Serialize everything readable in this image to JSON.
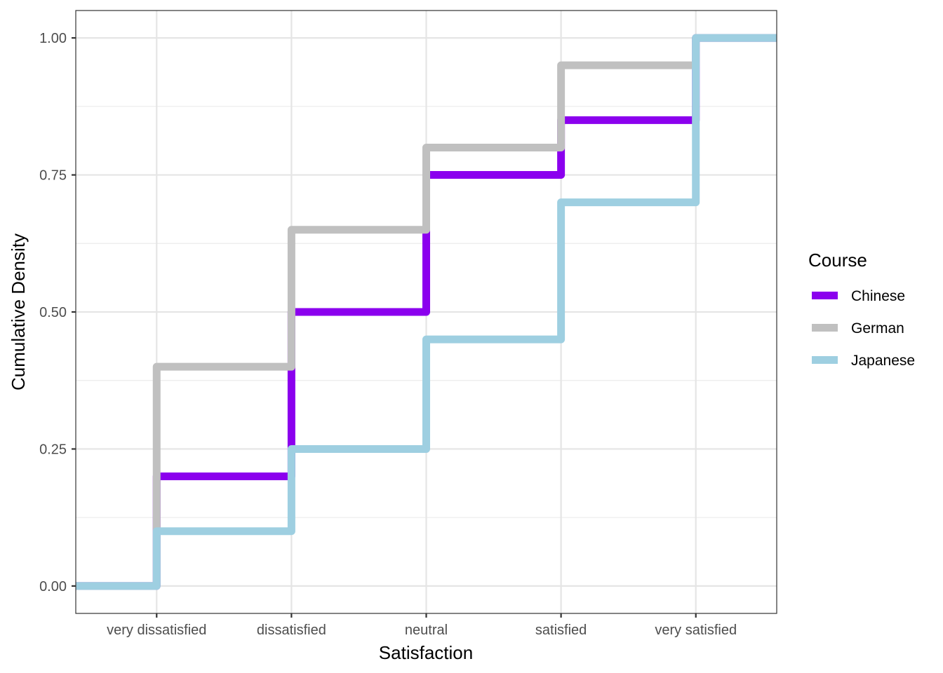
{
  "chart_data": {
    "type": "line",
    "step": true,
    "title": "",
    "xlabel": "Satisfaction",
    "ylabel": "Cumulative Density",
    "categories": [
      "very dissatisfied",
      "dissatisfied",
      "neutral",
      "satisfied",
      "very satisfied"
    ],
    "xlim": [
      0.4,
      5.6
    ],
    "ylim": [
      -0.05,
      1.05
    ],
    "yticks": [
      0,
      0.25,
      0.5,
      0.75,
      1
    ],
    "ytick_labels": [
      "0.00",
      "0.25",
      "0.50",
      "0.75",
      "1.00"
    ],
    "grid": true,
    "legend": {
      "title": "Course",
      "position": "right"
    },
    "series": [
      {
        "name": "Chinese",
        "color": "#8B00EE",
        "values": [
          0.2,
          0.5,
          0.75,
          0.85,
          1.0
        ]
      },
      {
        "name": "German",
        "color": "#C0C0C0",
        "values": [
          0.4,
          0.65,
          0.8,
          0.95,
          1.0
        ]
      },
      {
        "name": "Japanese",
        "color": "#9ECFE1",
        "values": [
          0.1,
          0.25,
          0.45,
          0.7,
          1.0
        ]
      }
    ]
  }
}
